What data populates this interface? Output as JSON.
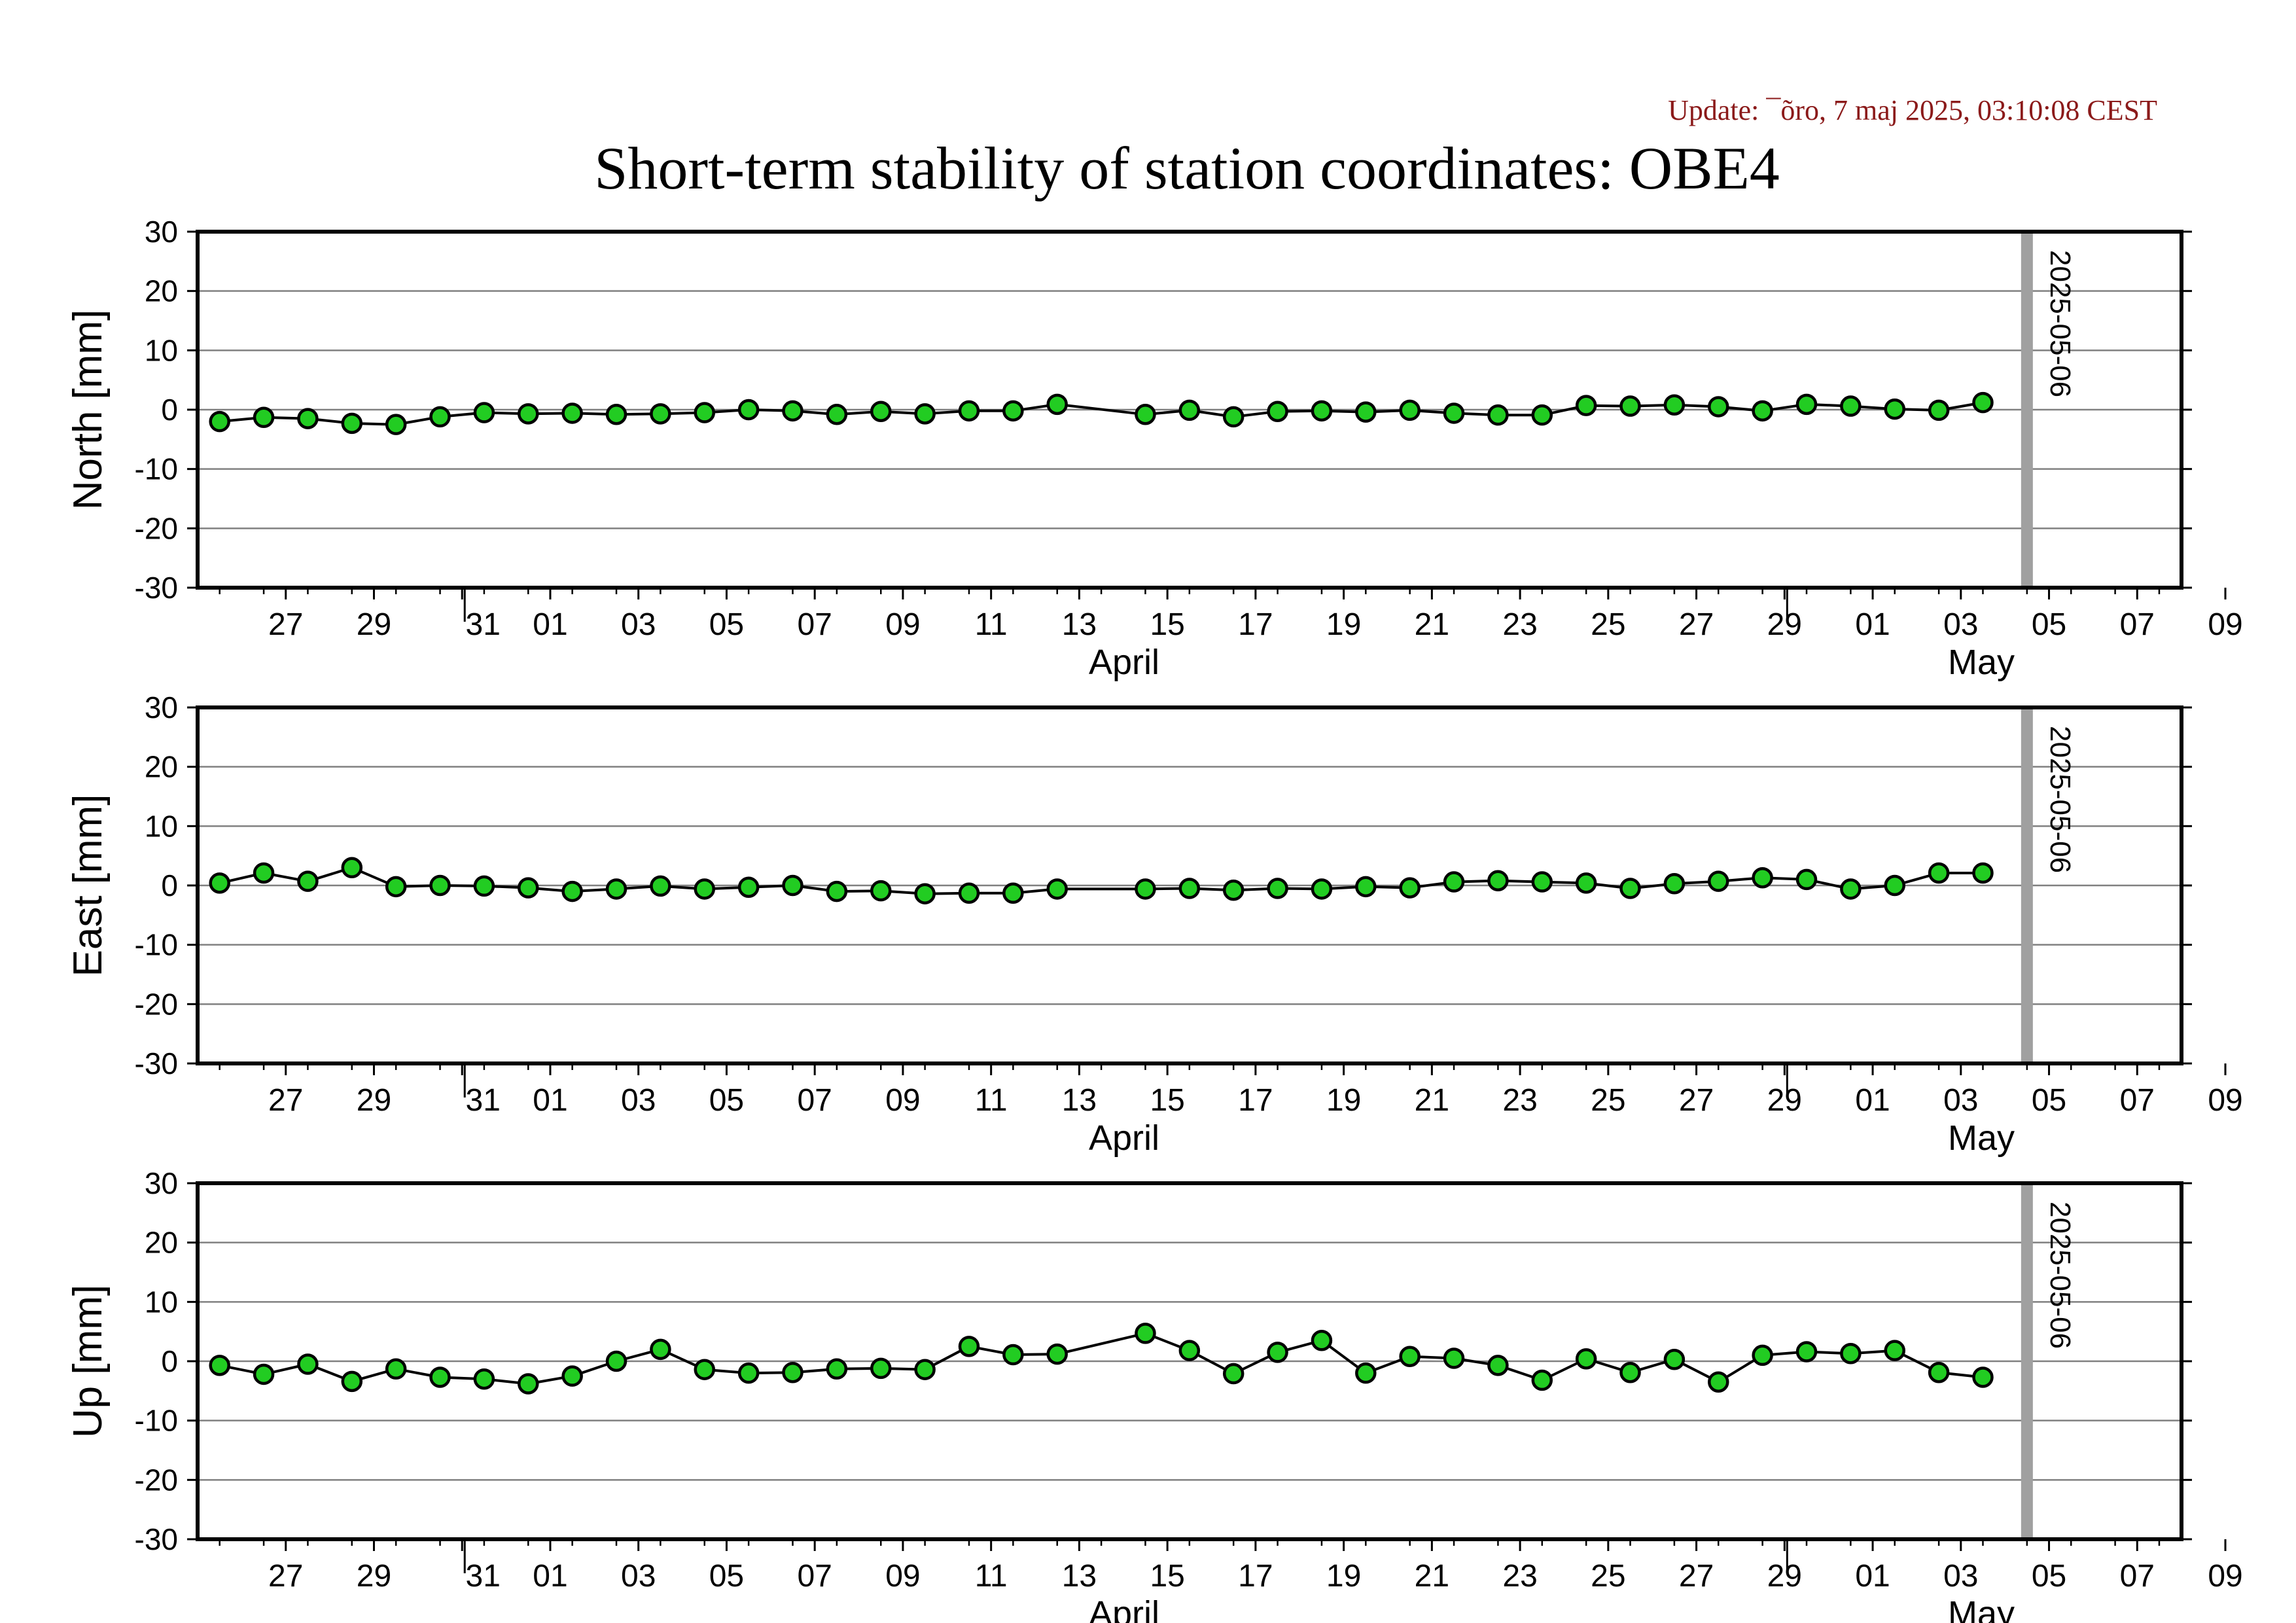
{
  "update_text": "Update: ¯õro, 7 maj 2025, 03:10:08 CEST",
  "colors": {
    "update_text": "#8b1a1a",
    "marker_fill": "#22cc22",
    "marker_stroke": "#000000",
    "line": "#000000",
    "grid": "#808080",
    "marker_band": "#a0a0a0"
  },
  "chart_data": {
    "type": "line",
    "title": "Short-term stability of station coordinates: OBE4",
    "grid": true,
    "x_tick_labels": [
      "27",
      "29",
      "31",
      "01",
      "03",
      "05",
      "07",
      "09",
      "11",
      "13",
      "15",
      "17",
      "19",
      "21",
      "23",
      "25",
      "27",
      "29",
      "01",
      "03",
      "05",
      "07",
      "09"
    ],
    "month_labels": [
      "April",
      "May"
    ],
    "marker_label": "2025-05-06",
    "panels": [
      {
        "ylabel": "North [mm]",
        "ylim": [
          -30,
          30
        ],
        "yticks": [
          30,
          20,
          10,
          0,
          -10,
          -20,
          -30
        ],
        "points": [
          {
            "date": "2025-03-26",
            "value": -2.0
          },
          {
            "date": "2025-03-27",
            "value": -1.3
          },
          {
            "date": "2025-03-28",
            "value": -1.5
          },
          {
            "date": "2025-03-29",
            "value": -2.3
          },
          {
            "date": "2025-03-30",
            "value": -2.5
          },
          {
            "date": "2025-03-31",
            "value": -1.2
          },
          {
            "date": "2025-04-01",
            "value": -0.5
          },
          {
            "date": "2025-04-02",
            "value": -0.7
          },
          {
            "date": "2025-04-03",
            "value": -0.6
          },
          {
            "date": "2025-04-04",
            "value": -0.8
          },
          {
            "date": "2025-04-05",
            "value": -0.7
          },
          {
            "date": "2025-04-06",
            "value": -0.5
          },
          {
            "date": "2025-04-07",
            "value": 0.0
          },
          {
            "date": "2025-04-08",
            "value": -0.2
          },
          {
            "date": "2025-04-09",
            "value": -0.8
          },
          {
            "date": "2025-04-10",
            "value": -0.3
          },
          {
            "date": "2025-04-11",
            "value": -0.7
          },
          {
            "date": "2025-04-12",
            "value": -0.2
          },
          {
            "date": "2025-04-13",
            "value": -0.2
          },
          {
            "date": "2025-04-14",
            "value": 0.9
          },
          {
            "date": "2025-04-16",
            "value": -0.8
          },
          {
            "date": "2025-04-17",
            "value": -0.1
          },
          {
            "date": "2025-04-18",
            "value": -1.2
          },
          {
            "date": "2025-04-19",
            "value": -0.3
          },
          {
            "date": "2025-04-20",
            "value": -0.2
          },
          {
            "date": "2025-04-21",
            "value": -0.4
          },
          {
            "date": "2025-04-22",
            "value": -0.1
          },
          {
            "date": "2025-04-23",
            "value": -0.6
          },
          {
            "date": "2025-04-24",
            "value": -0.9
          },
          {
            "date": "2025-04-25",
            "value": -0.9
          },
          {
            "date": "2025-04-26",
            "value": 0.7
          },
          {
            "date": "2025-04-27",
            "value": 0.6
          },
          {
            "date": "2025-04-28",
            "value": 0.8
          },
          {
            "date": "2025-04-29",
            "value": 0.5
          },
          {
            "date": "2025-04-30",
            "value": -0.2
          },
          {
            "date": "2025-05-01",
            "value": 0.9
          },
          {
            "date": "2025-05-02",
            "value": 0.6
          },
          {
            "date": "2025-05-03",
            "value": 0.1
          },
          {
            "date": "2025-05-04",
            "value": -0.1
          },
          {
            "date": "2025-05-05",
            "value": 1.2
          }
        ]
      },
      {
        "ylabel": "East [mm]",
        "ylim": [
          -30,
          30
        ],
        "yticks": [
          30,
          20,
          10,
          0,
          -10,
          -20,
          -30
        ],
        "points": [
          {
            "date": "2025-03-26",
            "value": 0.4
          },
          {
            "date": "2025-03-27",
            "value": 2.1
          },
          {
            "date": "2025-03-28",
            "value": 0.7
          },
          {
            "date": "2025-03-29",
            "value": 3.0
          },
          {
            "date": "2025-03-30",
            "value": -0.2
          },
          {
            "date": "2025-03-31",
            "value": 0.0
          },
          {
            "date": "2025-04-01",
            "value": -0.1
          },
          {
            "date": "2025-04-02",
            "value": -0.4
          },
          {
            "date": "2025-04-03",
            "value": -1.0
          },
          {
            "date": "2025-04-04",
            "value": -0.6
          },
          {
            "date": "2025-04-05",
            "value": -0.1
          },
          {
            "date": "2025-04-06",
            "value": -0.6
          },
          {
            "date": "2025-04-07",
            "value": -0.3
          },
          {
            "date": "2025-04-08",
            "value": 0.0
          },
          {
            "date": "2025-04-09",
            "value": -1.0
          },
          {
            "date": "2025-04-10",
            "value": -0.9
          },
          {
            "date": "2025-04-11",
            "value": -1.4
          },
          {
            "date": "2025-04-12",
            "value": -1.3
          },
          {
            "date": "2025-04-13",
            "value": -1.3
          },
          {
            "date": "2025-04-14",
            "value": -0.6
          },
          {
            "date": "2025-04-16",
            "value": -0.6
          },
          {
            "date": "2025-04-17",
            "value": -0.5
          },
          {
            "date": "2025-04-18",
            "value": -0.8
          },
          {
            "date": "2025-04-19",
            "value": -0.5
          },
          {
            "date": "2025-04-20",
            "value": -0.6
          },
          {
            "date": "2025-04-21",
            "value": -0.2
          },
          {
            "date": "2025-04-22",
            "value": -0.4
          },
          {
            "date": "2025-04-23",
            "value": 0.6
          },
          {
            "date": "2025-04-24",
            "value": 0.8
          },
          {
            "date": "2025-04-25",
            "value": 0.6
          },
          {
            "date": "2025-04-26",
            "value": 0.4
          },
          {
            "date": "2025-04-27",
            "value": -0.5
          },
          {
            "date": "2025-04-28",
            "value": 0.3
          },
          {
            "date": "2025-04-29",
            "value": 0.7
          },
          {
            "date": "2025-04-30",
            "value": 1.3
          },
          {
            "date": "2025-05-01",
            "value": 1.0
          },
          {
            "date": "2025-05-02",
            "value": -0.6
          },
          {
            "date": "2025-05-03",
            "value": 0.0
          },
          {
            "date": "2025-05-04",
            "value": 2.1
          },
          {
            "date": "2025-05-05",
            "value": 2.1
          }
        ]
      },
      {
        "ylabel": "Up [mm]",
        "ylim": [
          -30,
          30
        ],
        "yticks": [
          30,
          20,
          10,
          0,
          -10,
          -20,
          -30
        ],
        "points": [
          {
            "date": "2025-03-26",
            "value": -0.7
          },
          {
            "date": "2025-03-27",
            "value": -2.2
          },
          {
            "date": "2025-03-28",
            "value": -0.5
          },
          {
            "date": "2025-03-29",
            "value": -3.4
          },
          {
            "date": "2025-03-30",
            "value": -1.3
          },
          {
            "date": "2025-03-31",
            "value": -2.7
          },
          {
            "date": "2025-04-01",
            "value": -3.0
          },
          {
            "date": "2025-04-02",
            "value": -3.8
          },
          {
            "date": "2025-04-03",
            "value": -2.5
          },
          {
            "date": "2025-04-04",
            "value": 0.0
          },
          {
            "date": "2025-04-05",
            "value": 2.0
          },
          {
            "date": "2025-04-06",
            "value": -1.4
          },
          {
            "date": "2025-04-07",
            "value": -2.0
          },
          {
            "date": "2025-04-08",
            "value": -1.9
          },
          {
            "date": "2025-04-09",
            "value": -1.3
          },
          {
            "date": "2025-04-10",
            "value": -1.2
          },
          {
            "date": "2025-04-11",
            "value": -1.4
          },
          {
            "date": "2025-04-12",
            "value": 2.5
          },
          {
            "date": "2025-04-13",
            "value": 1.1
          },
          {
            "date": "2025-04-14",
            "value": 1.2
          },
          {
            "date": "2025-04-16",
            "value": 4.7
          },
          {
            "date": "2025-04-17",
            "value": 1.8
          },
          {
            "date": "2025-04-18",
            "value": -2.1
          },
          {
            "date": "2025-04-19",
            "value": 1.5
          },
          {
            "date": "2025-04-20",
            "value": 3.5
          },
          {
            "date": "2025-04-21",
            "value": -2.0
          },
          {
            "date": "2025-04-22",
            "value": 0.8
          },
          {
            "date": "2025-04-23",
            "value": 0.5
          },
          {
            "date": "2025-04-24",
            "value": -0.7
          },
          {
            "date": "2025-04-25",
            "value": -3.2
          },
          {
            "date": "2025-04-26",
            "value": 0.4
          },
          {
            "date": "2025-04-27",
            "value": -1.9
          },
          {
            "date": "2025-04-28",
            "value": 0.3
          },
          {
            "date": "2025-04-29",
            "value": -3.5
          },
          {
            "date": "2025-04-30",
            "value": 1.0
          },
          {
            "date": "2025-05-01",
            "value": 1.6
          },
          {
            "date": "2025-05-02",
            "value": 1.3
          },
          {
            "date": "2025-05-03",
            "value": 1.8
          },
          {
            "date": "2025-05-04",
            "value": -1.9
          },
          {
            "date": "2025-05-05",
            "value": -2.7
          }
        ]
      }
    ]
  }
}
